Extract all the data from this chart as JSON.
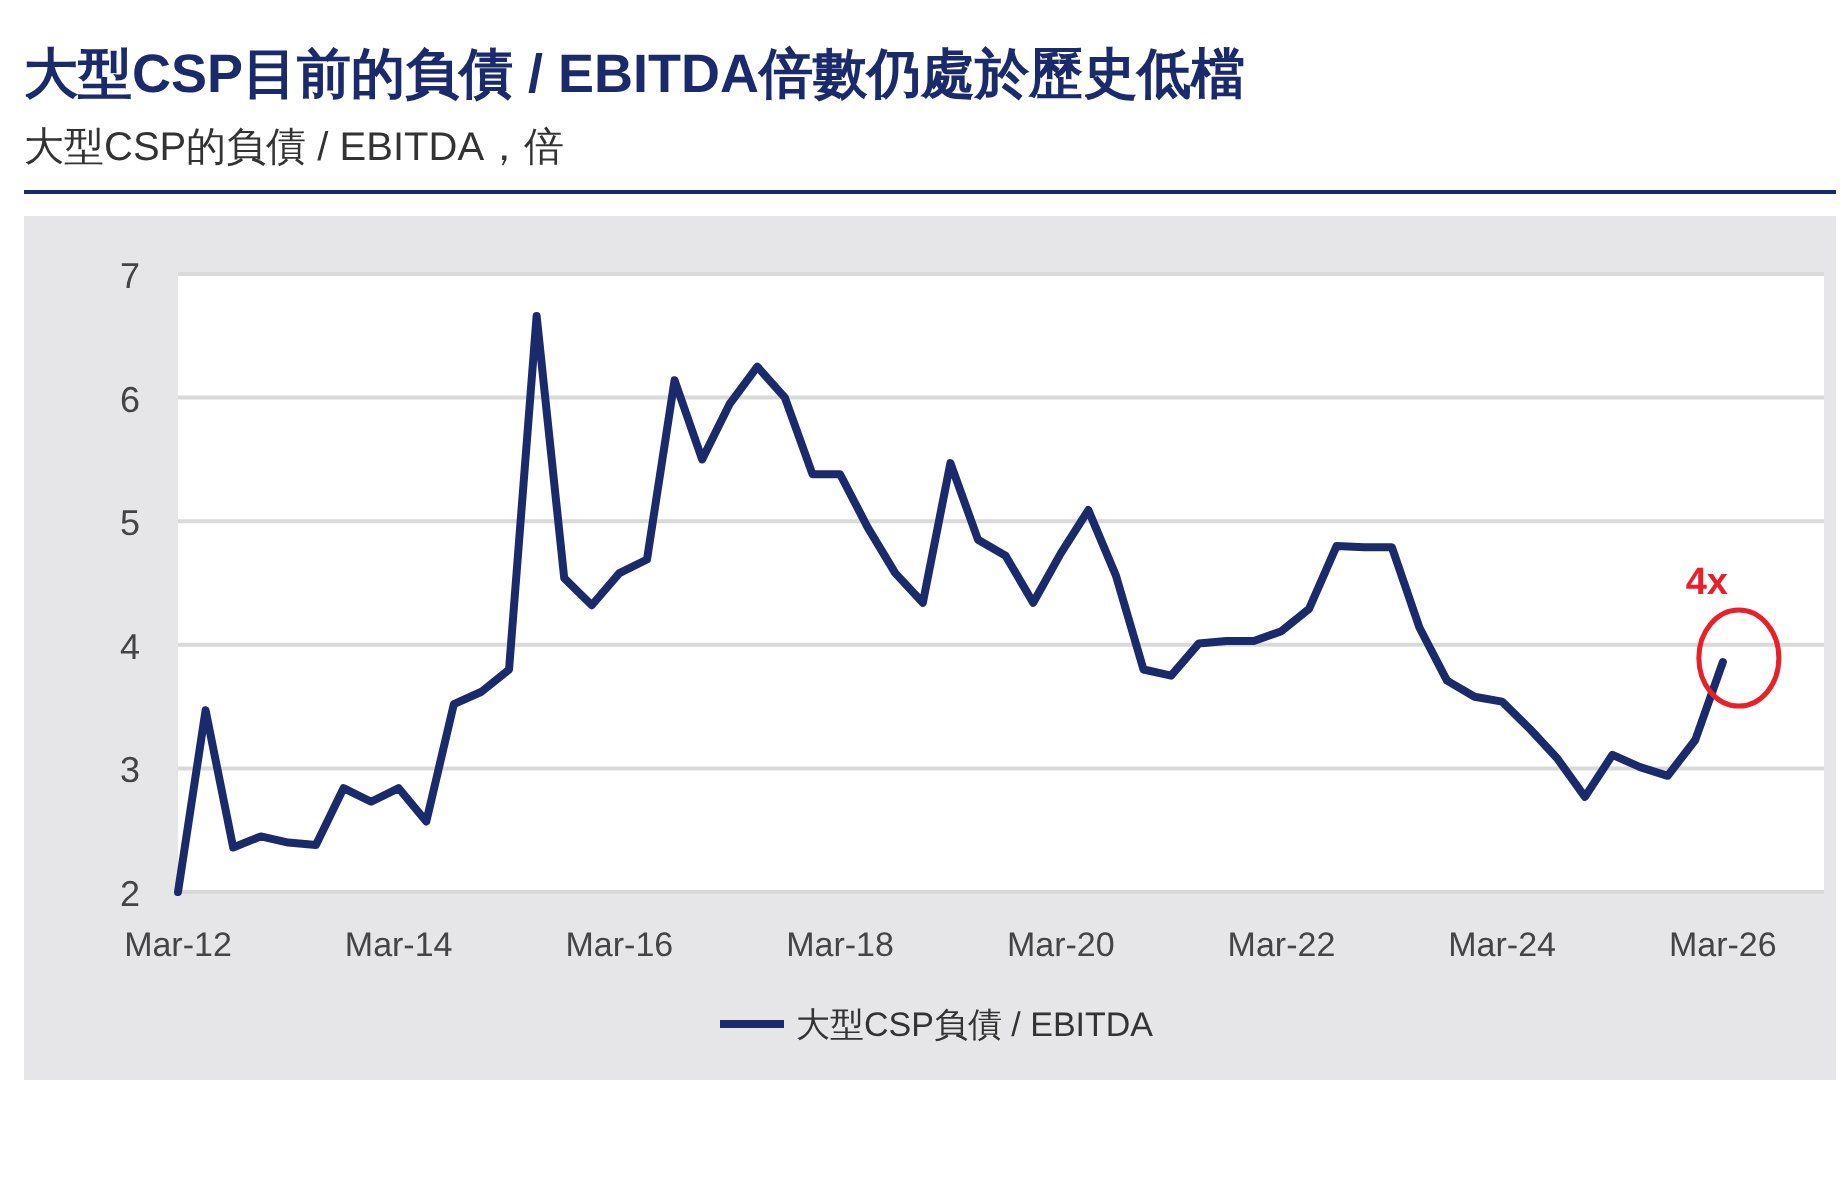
{
  "chart_data": {
    "type": "line",
    "title": "大型CSP目前的負債 / EBITDA倍數仍處於歷史低檔",
    "subtitle": "大型CSP的負債 / EBITDA，倍",
    "x": [
      "2012-03",
      "2012-06",
      "2012-09",
      "2012-12",
      "2013-03",
      "2013-06",
      "2013-09",
      "2013-12",
      "2014-03",
      "2014-06",
      "2014-09",
      "2014-12",
      "2015-03",
      "2015-06",
      "2015-09",
      "2015-12",
      "2016-03",
      "2016-06",
      "2016-09",
      "2016-12",
      "2017-03",
      "2017-06",
      "2017-09",
      "2017-12",
      "2018-03",
      "2018-06",
      "2018-09",
      "2018-12",
      "2019-03",
      "2019-06",
      "2019-09",
      "2019-12",
      "2020-03",
      "2020-06",
      "2020-09",
      "2020-12",
      "2021-03",
      "2021-06",
      "2021-09",
      "2021-12",
      "2022-03",
      "2022-06",
      "2022-09",
      "2022-12",
      "2023-03",
      "2023-06",
      "2023-09",
      "2023-12",
      "2024-03",
      "2024-06",
      "2024-09",
      "2024-12",
      "2025-03",
      "2025-06",
      "2025-09",
      "2025-12",
      "2026-03"
    ],
    "series": [
      {
        "name": "大型CSP負債 / EBITDA",
        "color": "#1b2a6b",
        "values": [
          2.0,
          3.47,
          2.36,
          2.45,
          2.4,
          2.38,
          2.84,
          2.73,
          2.84,
          2.57,
          3.52,
          3.62,
          3.8,
          6.66,
          4.54,
          4.32,
          4.58,
          4.69,
          6.14,
          5.5,
          5.95,
          6.25,
          6.0,
          5.38,
          5.38,
          4.95,
          4.58,
          4.34,
          5.47,
          4.85,
          4.72,
          4.34,
          4.74,
          5.09,
          4.56,
          3.8,
          3.75,
          4.01,
          4.03,
          4.03,
          4.11,
          4.29,
          4.8,
          4.79,
          4.79,
          4.14,
          3.71,
          3.58,
          3.54,
          3.32,
          3.08,
          2.77,
          3.11,
          3.01,
          2.94,
          3.23,
          3.86
        ]
      }
    ],
    "xlim": [
      "2012-03",
      "2027-02"
    ],
    "xticks": [
      {
        "value": "2012-03",
        "label": "Mar-12"
      },
      {
        "value": "2014-03",
        "label": "Mar-14"
      },
      {
        "value": "2016-03",
        "label": "Mar-16"
      },
      {
        "value": "2018-03",
        "label": "Mar-18"
      },
      {
        "value": "2020-03",
        "label": "Mar-20"
      },
      {
        "value": "2022-03",
        "label": "Mar-22"
      },
      {
        "value": "2024-03",
        "label": "Mar-24"
      },
      {
        "value": "2026-03",
        "label": "Mar-26"
      }
    ],
    "ylim": [
      2,
      7
    ],
    "yticks": [
      2,
      3,
      4,
      5,
      6,
      7
    ],
    "grid": "y",
    "legend": "bottom",
    "marker": "none",
    "line_style": "solid",
    "annotations": [
      {
        "text": "4x",
        "x": "2026-03",
        "y": 3.86
      }
    ]
  }
}
